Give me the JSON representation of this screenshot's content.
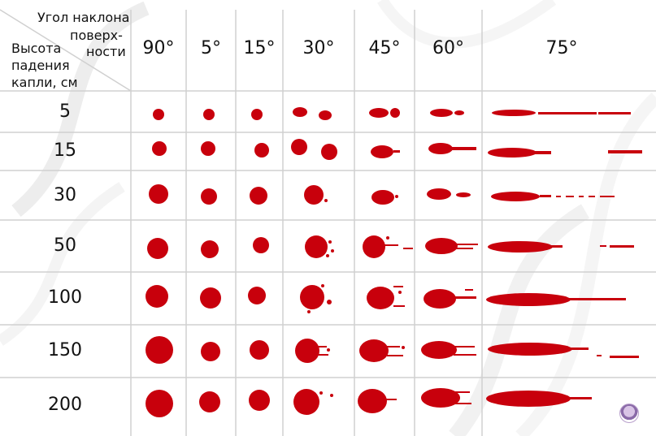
{
  "header": {
    "angle_title_line1": "Угол наклона",
    "angle_title_line2": "поверх-",
    "angle_title_line3": "ности",
    "height_title_line1": "Высота",
    "height_title_line2": "падения",
    "height_title_line3": "капли, см"
  },
  "angles": [
    "90°",
    "5°",
    "15°",
    "30°",
    "45°",
    "60°",
    "75°"
  ],
  "heights": [
    "5",
    "15",
    "30",
    "50",
    "100",
    "150",
    "200"
  ],
  "colors": {
    "blood": "#c8000c",
    "grid": "#d0d0d0",
    "text": "#111111"
  },
  "logo": {
    "icon": "author-avatar-icon"
  }
}
